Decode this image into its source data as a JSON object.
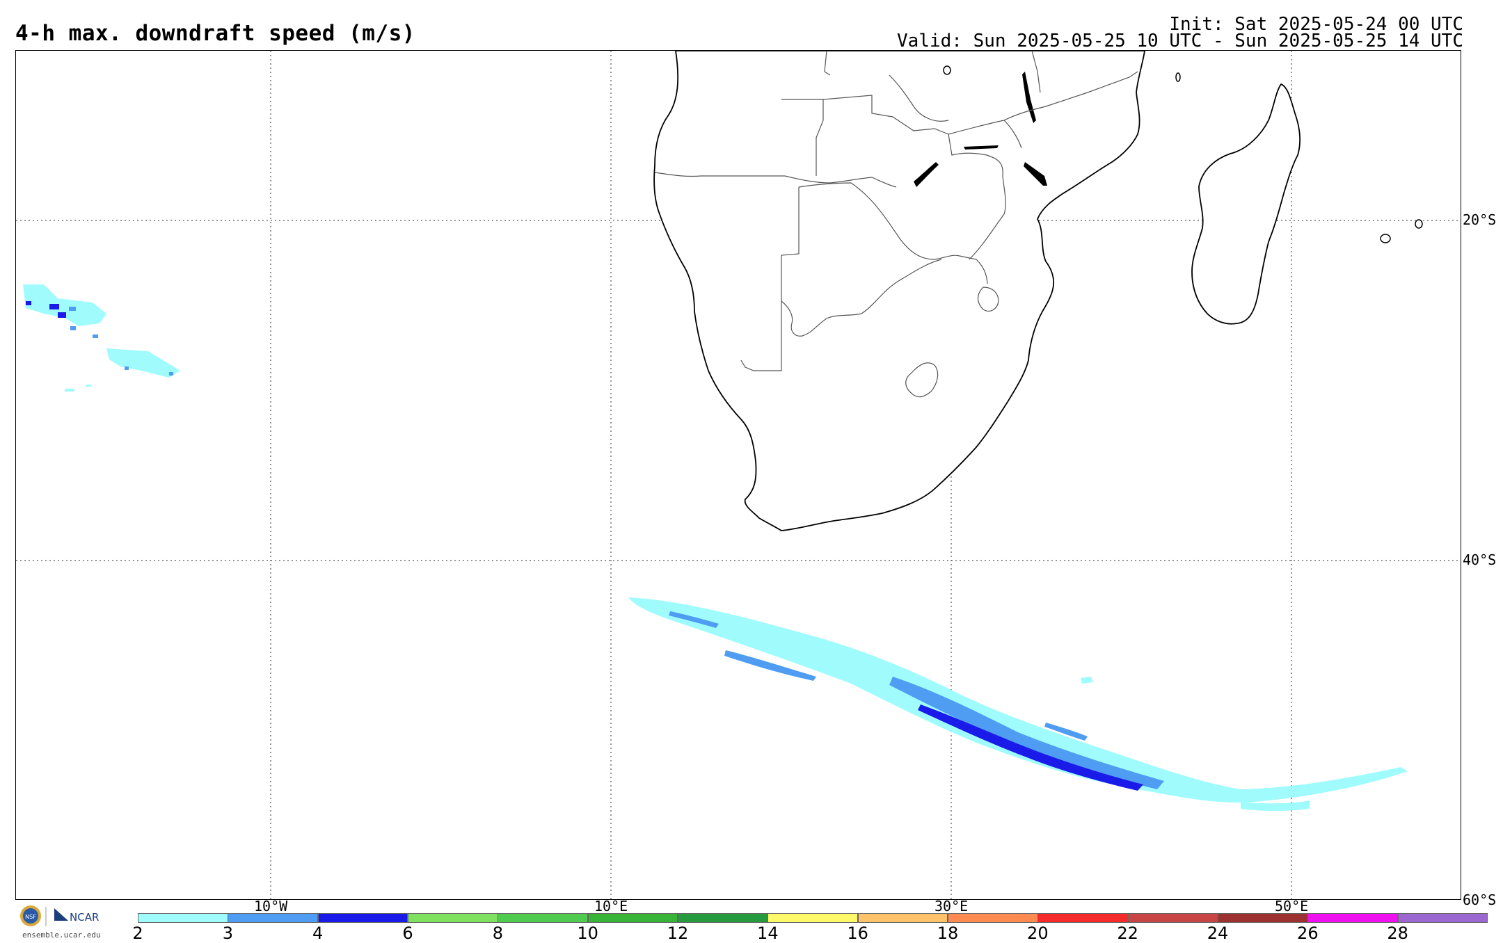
{
  "header": {
    "title": "4-h max. downdraft speed (m/s)",
    "init": "Init: Sat 2025-05-24 00 UTC",
    "valid": "Valid: Sun 2025-05-25 10 UTC - Sun 2025-05-25 14 UTC"
  },
  "map": {
    "lat_labels": [
      "20°S",
      "40°S",
      "60°S"
    ],
    "lon_labels": [
      "10°W",
      "10°E",
      "30°E",
      "50°E"
    ],
    "land_color": "#ffffff",
    "coast_color": "#000000",
    "border_color": "#555555",
    "grid_style": "dotted"
  },
  "colorbar": {
    "ticks": [
      "2",
      "3",
      "4",
      "6",
      "8",
      "10",
      "12",
      "14",
      "16",
      "18",
      "20",
      "22",
      "24",
      "26",
      "28"
    ],
    "colors": [
      "#a0fcfc",
      "#4f9df3",
      "#1a1be8",
      "#7fe15f",
      "#4fcc4f",
      "#37b437",
      "#259a3f",
      "#fdf96a",
      "#fdc26a",
      "#fd8a51",
      "#f52a2a",
      "#c94545",
      "#9d3131",
      "#ef10ef",
      "#9a68d0"
    ]
  },
  "branding": {
    "logos": [
      "NSF",
      "NCAR"
    ],
    "url": "ensemble.ucar.edu"
  }
}
